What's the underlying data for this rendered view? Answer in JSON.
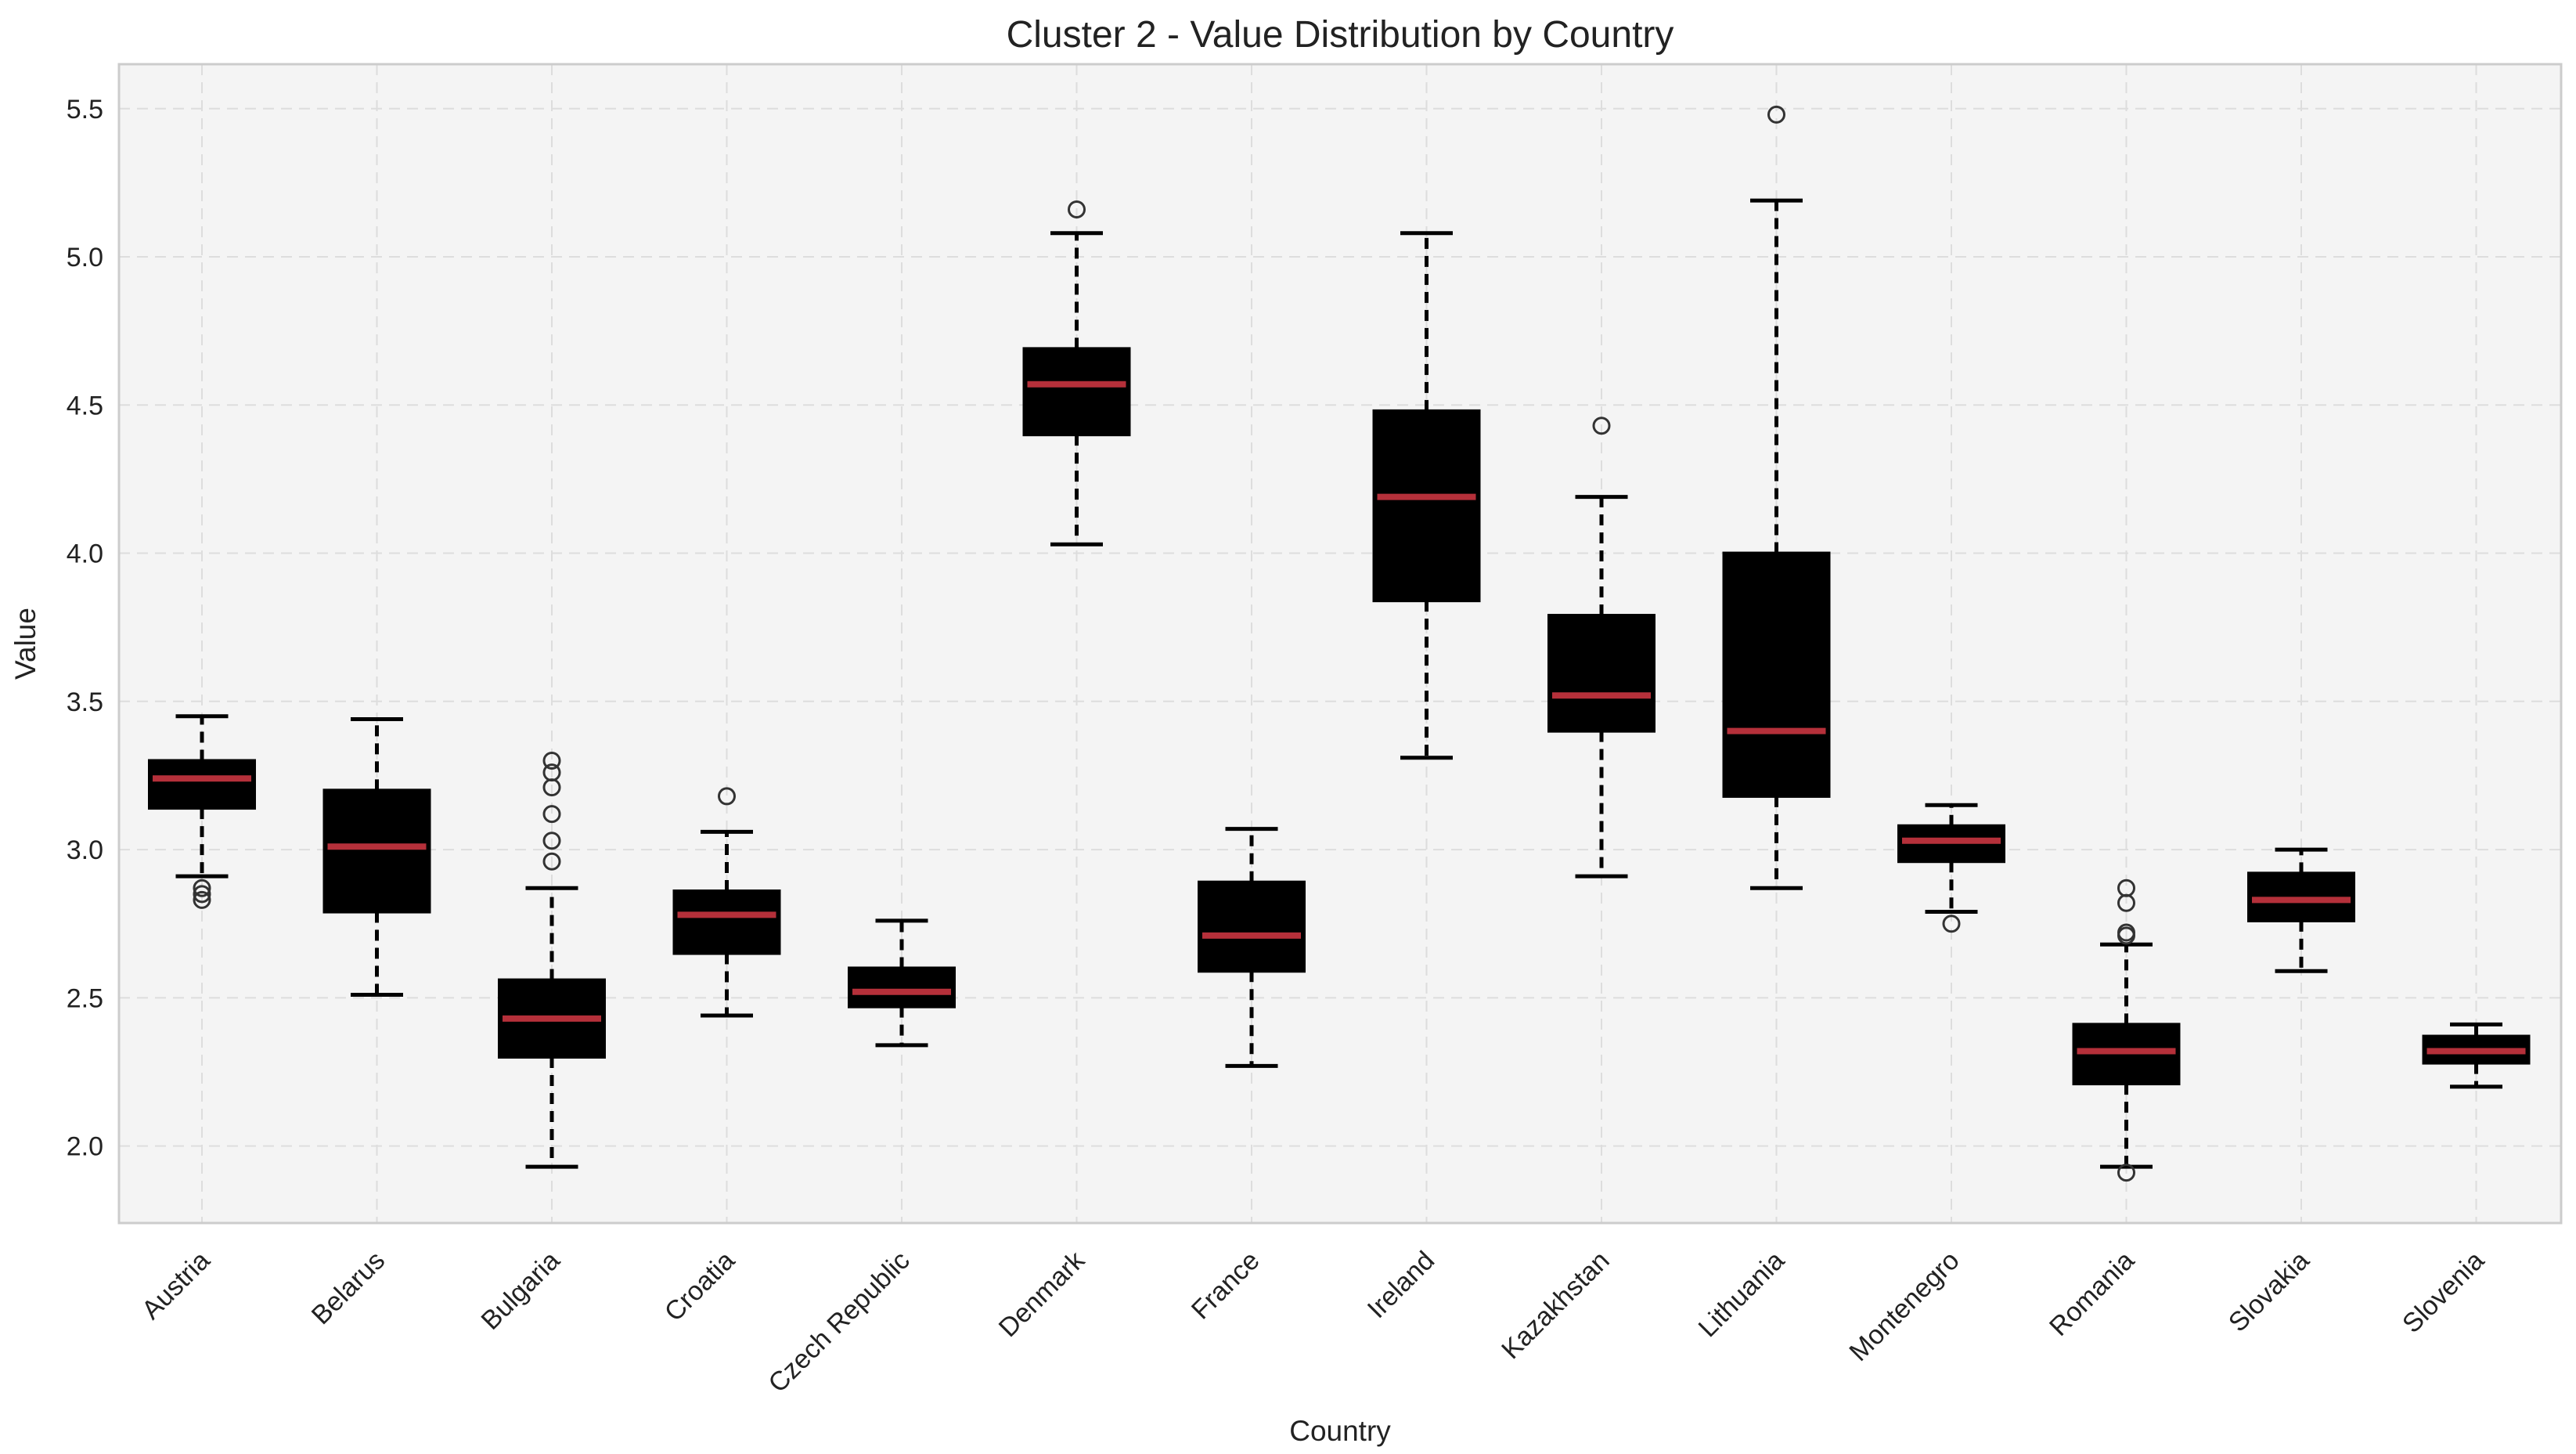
{
  "chart_data": {
    "type": "box",
    "title": "Cluster 2 - Value Distribution by Country",
    "xlabel": "Country",
    "ylabel": "Value",
    "ylim": [
      1.74,
      5.65
    ],
    "yticks": [
      "2.0",
      "2.5",
      "3.0",
      "3.5",
      "4.0",
      "4.5",
      "5.0",
      "5.5"
    ],
    "grid": true,
    "colors": {
      "plot_bg": "#f4f4f4",
      "box_fill": "#000000",
      "median": "#b5303a",
      "whisker": "#000000",
      "grid": "#dddddd",
      "frame": "#cccccc"
    },
    "series": [
      {
        "name": "Austria",
        "q1": 3.14,
        "median": 3.24,
        "q3": 3.3,
        "whislo": 2.91,
        "whishi": 3.45,
        "fliers": [
          2.83,
          2.85,
          2.87
        ]
      },
      {
        "name": "Belarus",
        "q1": 2.79,
        "median": 3.01,
        "q3": 3.2,
        "whislo": 2.51,
        "whishi": 3.44,
        "fliers": []
      },
      {
        "name": "Bulgaria",
        "q1": 2.3,
        "median": 2.43,
        "q3": 2.56,
        "whislo": 1.93,
        "whishi": 2.87,
        "fliers": [
          2.96,
          3.03,
          3.12,
          3.21,
          3.26,
          3.3
        ]
      },
      {
        "name": "Croatia",
        "q1": 2.65,
        "median": 2.78,
        "q3": 2.86,
        "whislo": 2.44,
        "whishi": 3.06,
        "fliers": [
          3.18
        ]
      },
      {
        "name": "Czech Republic",
        "q1": 2.47,
        "median": 2.52,
        "q3": 2.6,
        "whislo": 2.34,
        "whishi": 2.76,
        "fliers": []
      },
      {
        "name": "Denmark",
        "q1": 4.4,
        "median": 4.57,
        "q3": 4.69,
        "whislo": 4.03,
        "whishi": 5.08,
        "fliers": [
          5.16
        ]
      },
      {
        "name": "France",
        "q1": 2.59,
        "median": 2.71,
        "q3": 2.89,
        "whislo": 2.27,
        "whishi": 3.07,
        "fliers": []
      },
      {
        "name": "Ireland",
        "q1": 3.84,
        "median": 4.19,
        "q3": 4.48,
        "whislo": 3.31,
        "whishi": 5.08,
        "fliers": []
      },
      {
        "name": "Kazakhstan",
        "q1": 3.4,
        "median": 3.52,
        "q3": 3.79,
        "whislo": 2.91,
        "whishi": 4.19,
        "fliers": [
          4.43
        ]
      },
      {
        "name": "Lithuania",
        "q1": 3.18,
        "median": 3.4,
        "q3": 4.0,
        "whislo": 2.87,
        "whishi": 5.19,
        "fliers": [
          5.48
        ]
      },
      {
        "name": "Montenegro",
        "q1": 2.96,
        "median": 3.03,
        "q3": 3.08,
        "whislo": 2.79,
        "whishi": 3.15,
        "fliers": [
          2.75
        ]
      },
      {
        "name": "Romania",
        "q1": 2.21,
        "median": 2.32,
        "q3": 2.41,
        "whislo": 1.93,
        "whishi": 2.68,
        "fliers": [
          1.91,
          2.71,
          2.72,
          2.82,
          2.87
        ]
      },
      {
        "name": "Slovakia",
        "q1": 2.76,
        "median": 2.83,
        "q3": 2.92,
        "whislo": 2.59,
        "whishi": 3.0,
        "fliers": []
      },
      {
        "name": "Slovenia",
        "q1": 2.28,
        "median": 2.32,
        "q3": 2.37,
        "whislo": 2.2,
        "whishi": 2.41,
        "fliers": []
      }
    ]
  }
}
